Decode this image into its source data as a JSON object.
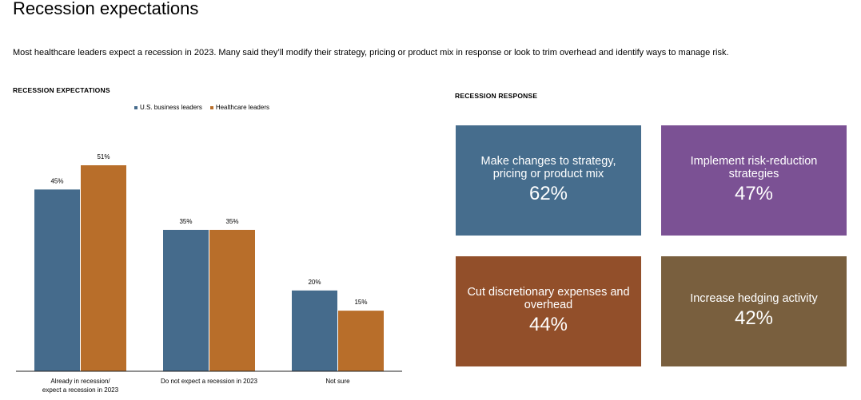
{
  "page": {
    "title": "Recession expectations",
    "subtitle": "Most healthcare leaders expect a recession in 2023. Many said they’ll modify their strategy, pricing or product mix in response or look to trim overhead and identify ways to manage risk."
  },
  "left_section": {
    "label": "RECESSION EXPECTATIONS"
  },
  "right_section": {
    "label": "RECESSION RESPONSE"
  },
  "chart_data": {
    "type": "bar",
    "categories": [
      [
        "Already in recession/",
        "expect a recession in 2023"
      ],
      [
        "Do not expect a recession in 2023"
      ],
      [
        "Not sure"
      ]
    ],
    "series": [
      {
        "name": "U.S. business leaders",
        "values": [
          45,
          35,
          20
        ],
        "labels": [
          "45%",
          "35%",
          "20%"
        ],
        "color": "#456b8c"
      },
      {
        "name": "Healthcare leaders",
        "values": [
          51,
          35,
          15
        ],
        "labels": [
          "51%",
          "35%",
          "15%"
        ],
        "color": "#b86e2a"
      }
    ],
    "ylim": [
      0,
      51
    ],
    "legend_position": "top",
    "grid": false
  },
  "tiles": [
    {
      "label": "Make changes to strategy, pricing or product mix",
      "value": "62%",
      "color": "#466d8d"
    },
    {
      "label": "Implement risk-reduction strategies",
      "value": "47%",
      "color": "#7b5194"
    },
    {
      "label": "Cut discretionary expenses and overhead",
      "value": "44%",
      "color": "#924f2a"
    },
    {
      "label": "Increase hedging activity",
      "value": "42%",
      "color": "#795f3e"
    }
  ]
}
